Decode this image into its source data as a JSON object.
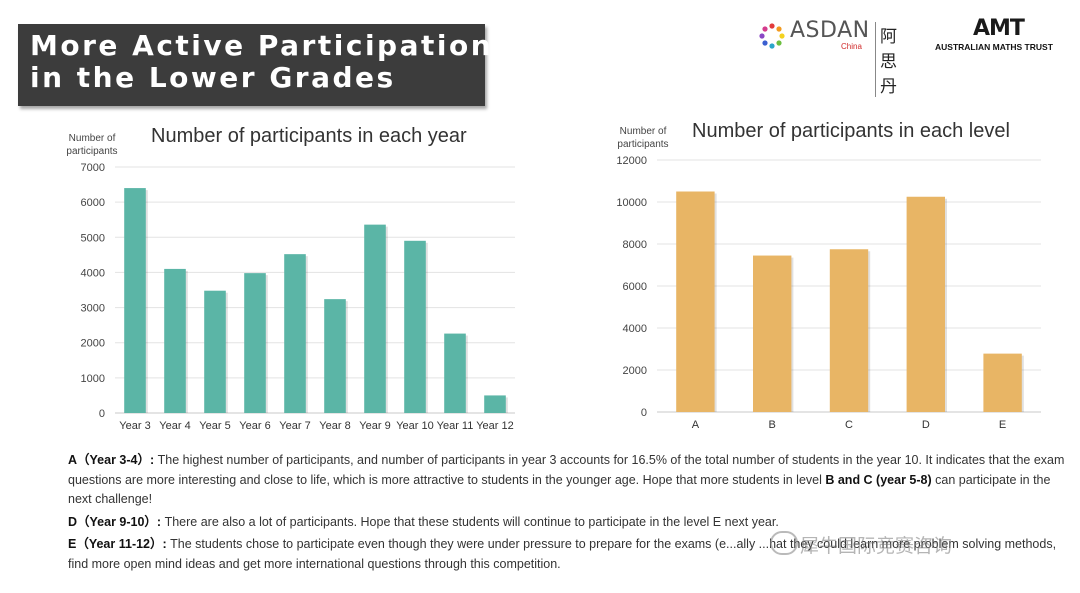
{
  "title": {
    "line1": "More Active Participation",
    "line2": "in the Lower Grades"
  },
  "logos": {
    "asdan_name": "ASDAN",
    "asdan_sub": "China",
    "asdan_cn": "阿思丹",
    "amt_mark": "AMT",
    "amt_name": "AUSTRALIAN MATHS TRUST"
  },
  "chart_data": [
    {
      "type": "bar",
      "title": "Number of participants in each year",
      "ylabel": "Number of participants",
      "xlabel": "",
      "categories": [
        "Year 3",
        "Year 4",
        "Year 5",
        "Year 6",
        "Year 7",
        "Year 8",
        "Year 9",
        "Year 10",
        "Year 11",
        "Year 12"
      ],
      "values": [
        6400,
        4100,
        3480,
        3980,
        4520,
        3240,
        5360,
        4900,
        2260,
        500
      ],
      "ylim": [
        0,
        7000
      ],
      "yticks": [
        0,
        1000,
        2000,
        3000,
        4000,
        5000,
        6000,
        7000
      ],
      "color": "#5bb5a6",
      "grid": true
    },
    {
      "type": "bar",
      "title": "Number of participants in each level",
      "ylabel": "Number of participants",
      "xlabel": "",
      "categories": [
        "A",
        "B",
        "C",
        "D",
        "E"
      ],
      "values": [
        10500,
        7450,
        7750,
        10250,
        2780
      ],
      "ylim": [
        0,
        12000
      ],
      "yticks": [
        0,
        2000,
        4000,
        6000,
        8000,
        10000,
        12000
      ],
      "color": "#e8b565",
      "grid": true
    }
  ],
  "description": {
    "p1_label": "A（Year 3-4）:",
    "p1_text": " The highest number of participants, and number of participants in year 3 accounts for 16.5% of the total number of students in the year 10. It indicates that the exam questions are more interesting and close to life, which is more attractive to students in the younger age. Hope that more students in level ",
    "p1_label2": "B and C (year 5-8)",
    "p1_text2": " can participate in the next challenge!",
    "p2_label": "D（Year 9-10）:",
    "p2_text": " There are also a lot of participants. Hope that these students will continue to participate in the level  E next year.",
    "p3_label": "E（Year 11-12）:",
    "p3_text": " The students chose to participate even though they were under pressure to prepare for the exams (e...ally                         ...hat they could learn more problem solving methods, find more open mind ideas and get more international questions through this competition."
  },
  "watermark": "犀牛国际竞赛咨询"
}
